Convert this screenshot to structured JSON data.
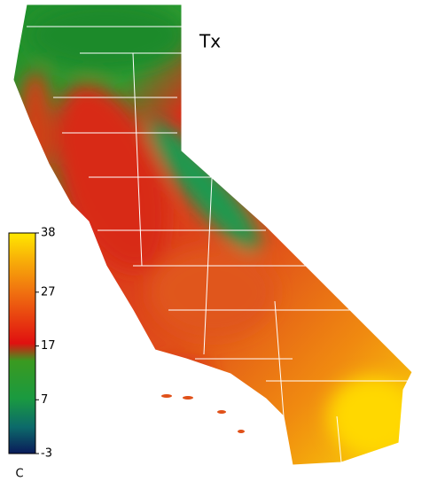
{
  "title": "Tx",
  "colorbar": {
    "unit": "C",
    "lim": [
      -3,
      38
    ],
    "ticks": [
      -3,
      7,
      17,
      27,
      38
    ]
  }
}
